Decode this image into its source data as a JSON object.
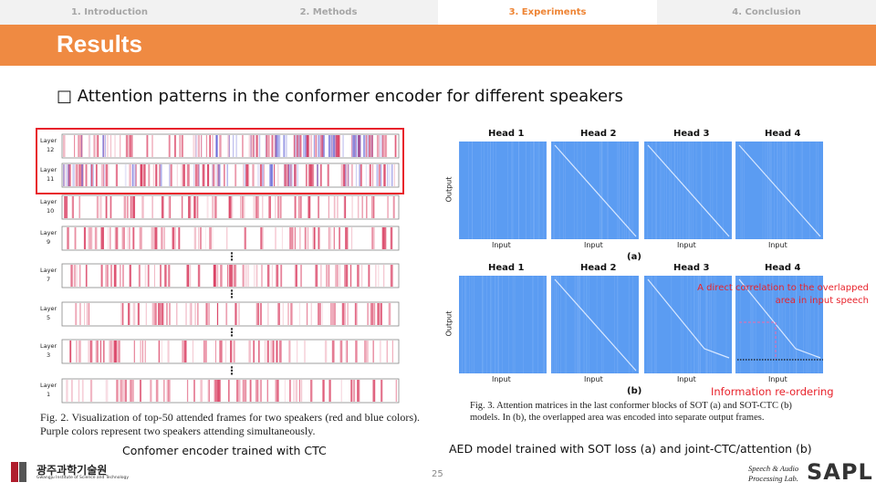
{
  "nav": {
    "tabs": [
      "1. Introduction",
      "2. Methods",
      "3. Experiments",
      "4. Conclusion"
    ],
    "active": 2
  },
  "header": {
    "title": "Results"
  },
  "bullet": "□ Attention patterns in the conformer encoder for different speakers",
  "left": {
    "layers": [
      {
        "label": "Layer",
        "number": 12
      },
      {
        "label": "Layer",
        "number": 11
      },
      {
        "label": "Layer",
        "number": 10
      },
      {
        "label": "Layer",
        "number": 9
      },
      {
        "label": "Layer",
        "number": 7
      },
      {
        "label": "Layer",
        "number": 5
      },
      {
        "label": "Layer",
        "number": 3
      },
      {
        "label": "Layer",
        "number": 1
      }
    ],
    "ellipsis": "⋮",
    "caption": "Fig. 2.   Visualization of top-50 attended frames for two speakers (red and blue colors). Purple colors represent two speakers attending simultaneously.",
    "subtitle": "Confomer encoder trained with CTC"
  },
  "right": {
    "panels": [
      {
        "heads": [
          "Head 1",
          "Head 2",
          "Head 3",
          "Head 4"
        ],
        "y_label": "Output",
        "x_label": "Input",
        "tag": "(a)"
      },
      {
        "heads": [
          "Head 1",
          "Head 2",
          "Head 3",
          "Head 4"
        ],
        "y_label": "Output",
        "x_label": "Input",
        "tag": "(b)"
      }
    ],
    "annotations": [
      "A direct correlation to the overlapped area in input speech",
      "Information re-ordering"
    ],
    "caption": "Fig. 3.   Attention matrices in the last conformer blocks of SOT (a) and SOT-CTC (b) models. In (b), the overlapped area was encoded into separate output frames.",
    "subtitle": "AED model trained with SOT loss (a) and joint-CTC/attention (b)"
  },
  "footer": {
    "page": 25,
    "institute": "광주과학기술원",
    "institute_en": "Gwangju Institute of Science and Technology",
    "lab": "Speech & Audio Processing Lab.",
    "lab_logo": "SAPL"
  }
}
